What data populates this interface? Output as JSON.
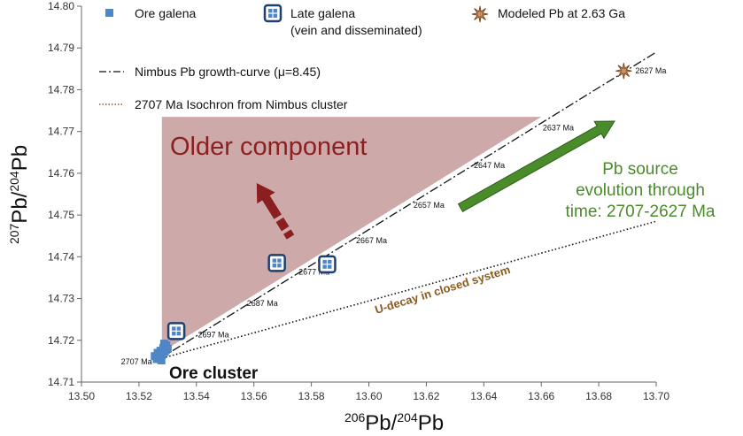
{
  "chart_data": {
    "type": "scatter",
    "title": "",
    "xlabel": {
      "sup1": "206",
      "base1": "Pb/",
      "sup2": "204",
      "base2": "Pb"
    },
    "ylabel": {
      "sup1": "207",
      "base1": "Pb/",
      "sup2": "204",
      "base2": "Pb"
    },
    "xlim": [
      13.5,
      13.7
    ],
    "ylim": [
      14.71,
      14.8
    ],
    "xticks": [
      "13.50",
      "13.52",
      "13.54",
      "13.56",
      "13.58",
      "13.60",
      "13.62",
      "13.64",
      "13.66",
      "13.68",
      "13.70"
    ],
    "yticks": [
      "14.71",
      "14.72",
      "14.73",
      "14.74",
      "14.75",
      "14.76",
      "14.77",
      "14.78",
      "14.79",
      "14.80"
    ],
    "grid": false,
    "legend": [
      {
        "label": "Ore galena",
        "symbol": "square",
        "color": "#4f86c6"
      },
      {
        "label": "Late galena",
        "sublabel": "(vein and disseminated)",
        "symbol": "framed-square-errorbar",
        "color": "#1f3f6e"
      },
      {
        "label": "Modeled Pb at 2.63 Ga",
        "symbol": "star",
        "color": "#7a4a1e"
      },
      {
        "label": "Nimbus Pb growth-curve (μ=8.45)",
        "symbol": "dash-dot-line",
        "color": "#111111"
      },
      {
        "label": "2707 Ma Isochron from Nimbus cluster",
        "symbol": "dotted-line",
        "color": "#8a5a2b"
      }
    ],
    "series": [
      {
        "name": "Ore galena",
        "points": [
          {
            "x": 13.5255,
            "y": 14.7162
          },
          {
            "x": 13.5265,
            "y": 14.717
          },
          {
            "x": 13.527,
            "y": 14.716
          },
          {
            "x": 13.5275,
            "y": 14.7175
          },
          {
            "x": 13.528,
            "y": 14.7165
          },
          {
            "x": 13.5285,
            "y": 14.7182
          },
          {
            "x": 13.529,
            "y": 14.7172
          },
          {
            "x": 13.5295,
            "y": 14.7188
          },
          {
            "x": 13.53,
            "y": 14.718
          },
          {
            "x": 13.5262,
            "y": 14.7155
          },
          {
            "x": 13.5278,
            "y": 14.7152
          },
          {
            "x": 13.5288,
            "y": 14.7192
          }
        ]
      },
      {
        "name": "Late galena",
        "points": [
          {
            "x": 13.533,
            "y": 14.7222
          },
          {
            "x": 13.568,
            "y": 14.7385
          },
          {
            "x": 13.5855,
            "y": 14.7382
          }
        ]
      },
      {
        "name": "Modeled Pb at 2.63 Ga",
        "points": [
          {
            "x": 13.6887,
            "y": 14.7845
          }
        ]
      }
    ],
    "growth_curve": {
      "start": {
        "x": 13.527,
        "y": 14.7155
      },
      "end": {
        "x": 13.7,
        "y": 14.789
      },
      "ages": [
        {
          "label": "2707 Ma",
          "x": 13.527,
          "y": 14.7155,
          "side": "left"
        },
        {
          "label": "2697 Ma",
          "x": 13.543,
          "y": 14.7235,
          "side": "below"
        },
        {
          "label": "2687 Ma",
          "x": 13.56,
          "y": 14.731,
          "side": "below"
        },
        {
          "label": "2677 Ma",
          "x": 13.578,
          "y": 14.7385,
          "side": "below"
        },
        {
          "label": "2667 Ma",
          "x": 13.598,
          "y": 14.746,
          "side": "below"
        },
        {
          "label": "2657 Ma",
          "x": 13.618,
          "y": 14.7545,
          "side": "below"
        },
        {
          "label": "2647 Ma",
          "x": 13.639,
          "y": 14.764,
          "side": "below"
        },
        {
          "label": "2637 Ma",
          "x": 13.663,
          "y": 14.773,
          "side": "below"
        },
        {
          "label": "2627 Ma",
          "x": 13.6887,
          "y": 14.7845,
          "side": "right"
        }
      ]
    },
    "isochron": {
      "start": {
        "x": 13.527,
        "y": 14.7155
      },
      "end": {
        "x": 13.7,
        "y": 14.7485
      }
    },
    "older_component_region": [
      {
        "x": 13.528,
        "y": 14.7172
      },
      {
        "x": 13.528,
        "y": 14.7735
      },
      {
        "x": 13.66,
        "y": 14.7735
      }
    ],
    "annotations": {
      "older_component": "Older component",
      "pb_source_lines": [
        "Pb source",
        "evolution through",
        "time: 2707-2627 Ma"
      ],
      "u_decay": "U-decay in closed system",
      "ore_cluster": "Ore cluster"
    },
    "colors": {
      "region_fill": "#c9a0a0",
      "older_text": "#8b2020",
      "arrow_dark_red": "#8b1e1e",
      "green": "#4a8b2a",
      "u_decay_text": "#8a5a1e",
      "ore_blue": "#4f86c6",
      "late_navy": "#1f3f6e",
      "star": "#7a4a1e"
    }
  }
}
